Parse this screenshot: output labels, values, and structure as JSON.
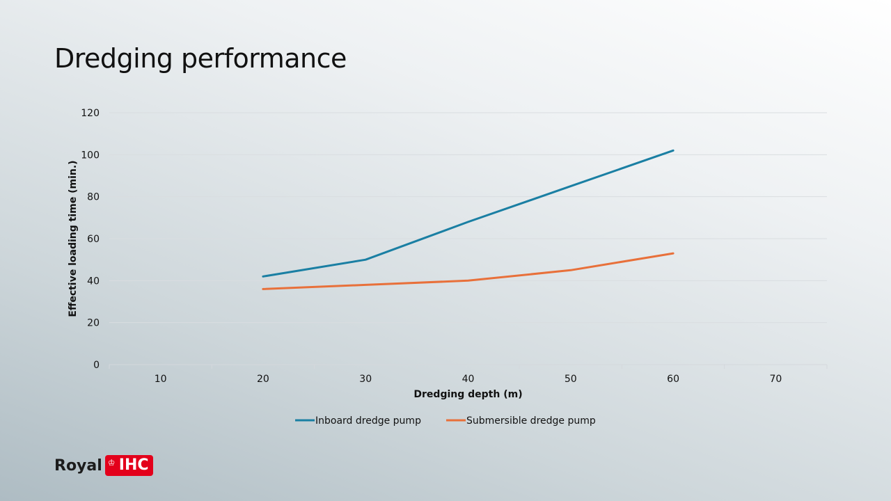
{
  "slide": {
    "title": "Dredging performance"
  },
  "logo": {
    "word": "Royal",
    "badge": "IHC",
    "crown": "♔",
    "badge_color": "#e3001b"
  },
  "chart_data": {
    "type": "line",
    "title": "",
    "xlabel": "Dredging depth (m)",
    "ylabel": "Effective loading time (min.)",
    "xlim": [
      5,
      75
    ],
    "ylim": [
      0,
      120
    ],
    "x_ticks": [
      10,
      20,
      30,
      40,
      50,
      60,
      70
    ],
    "y_ticks": [
      0,
      20,
      40,
      60,
      80,
      100,
      120
    ],
    "grid": true,
    "legend_position": "bottom",
    "series": [
      {
        "name": "Inboard dredge pump",
        "color": "#1a7fa3",
        "x": [
          20,
          30,
          40,
          50,
          60
        ],
        "y": [
          42,
          50,
          68,
          85,
          102
        ]
      },
      {
        "name": "Submersible dredge pump",
        "color": "#e8703a",
        "x": [
          20,
          30,
          40,
          50,
          60
        ],
        "y": [
          36,
          38,
          40,
          45,
          53
        ]
      }
    ]
  }
}
